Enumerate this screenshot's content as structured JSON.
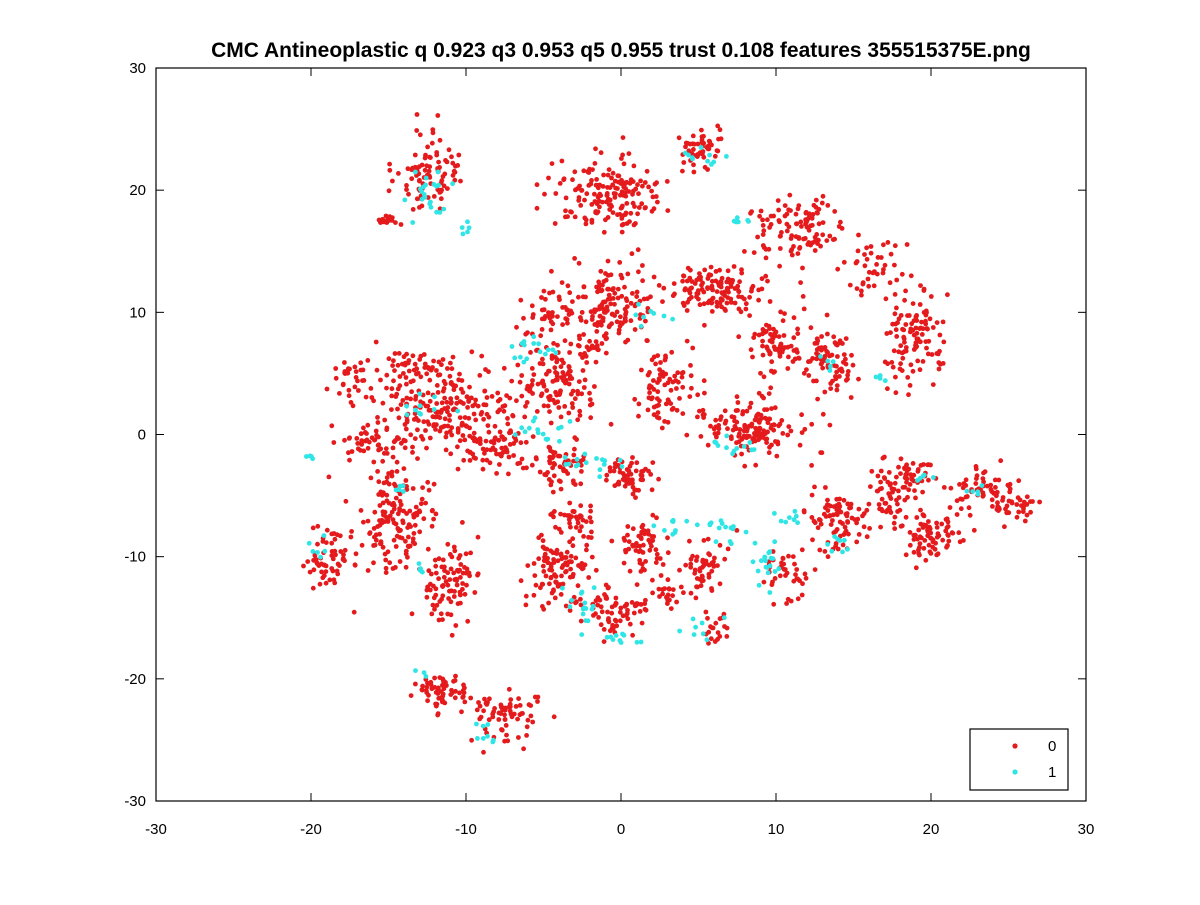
{
  "chart_data": {
    "type": "scatter",
    "title": "CMC Antineoplastic q 0.923 q3 0.953 q5 0.955 trust 0.108 features 355515375E.png",
    "xlabel": "",
    "ylabel": "",
    "xlim": [
      -30,
      30
    ],
    "ylim": [
      -30,
      30
    ],
    "xticks": [
      -30,
      -20,
      -10,
      0,
      10,
      20,
      30
    ],
    "yticks": [
      -30,
      -20,
      -10,
      0,
      10,
      20,
      30
    ],
    "tick_labels_x": [
      "-30",
      "-20",
      "-10",
      "0",
      "10",
      "20",
      "30"
    ],
    "tick_labels_y": [
      "-30",
      "-20",
      "-10",
      "0",
      "10",
      "20",
      "30"
    ],
    "grid": false,
    "legend": {
      "placement": "bottom-right",
      "entries": [
        {
          "label": "0",
          "color": "#e41a1c"
        },
        {
          "label": "1",
          "color": "#2fe5e5"
        }
      ]
    },
    "series": [
      {
        "name": "0",
        "color": "#e41a1c",
        "clusters": [
          [
            -12.5,
            21.5,
            1.6,
            2.5,
            90
          ],
          [
            -15.0,
            17.5,
            0.6,
            0.5,
            14
          ],
          [
            -1.0,
            19.5,
            2.5,
            2.3,
            170
          ],
          [
            5.0,
            23.5,
            1.3,
            1.2,
            50
          ],
          [
            11.5,
            17.0,
            2.5,
            2.2,
            110
          ],
          [
            19.0,
            8.0,
            1.6,
            3.5,
            110
          ],
          [
            16.5,
            14.0,
            1.5,
            2.0,
            40
          ],
          [
            -11.5,
            2.0,
            4.0,
            3.0,
            230
          ],
          [
            -16.5,
            -0.5,
            1.5,
            1.2,
            40
          ],
          [
            -14.5,
            -7.0,
            2.0,
            3.5,
            150
          ],
          [
            -11.0,
            -12.0,
            1.5,
            2.5,
            90
          ],
          [
            -19.0,
            -10.5,
            1.2,
            2.0,
            60
          ],
          [
            -11.5,
            -21.0,
            1.5,
            1.2,
            60
          ],
          [
            -7.5,
            -23.0,
            1.8,
            1.8,
            70
          ],
          [
            -1.0,
            10.5,
            2.5,
            2.5,
            160
          ],
          [
            6.0,
            12.0,
            2.5,
            1.5,
            130
          ],
          [
            10.0,
            7.5,
            1.5,
            2.0,
            80
          ],
          [
            13.5,
            6.0,
            1.2,
            2.5,
            80
          ],
          [
            8.5,
            0.5,
            2.5,
            1.8,
            140
          ],
          [
            3.0,
            4.0,
            1.5,
            2.5,
            80
          ],
          [
            -4.0,
            4.5,
            2.0,
            3.0,
            130
          ],
          [
            -4.0,
            -2.5,
            1.5,
            1.5,
            60
          ],
          [
            -8.0,
            -1.0,
            1.5,
            1.5,
            60
          ],
          [
            0.5,
            -3.5,
            1.2,
            1.2,
            60
          ],
          [
            -4.0,
            -11.0,
            1.5,
            2.0,
            100
          ],
          [
            1.5,
            -9.0,
            1.2,
            1.8,
            60
          ],
          [
            5.5,
            -11.0,
            1.0,
            1.8,
            50
          ],
          [
            -0.5,
            -14.5,
            2.0,
            1.5,
            70
          ],
          [
            3.0,
            -13.0,
            1.0,
            1.0,
            25
          ],
          [
            6.0,
            -16.0,
            0.8,
            1.2,
            20
          ],
          [
            -3.0,
            -7.0,
            1.2,
            1.2,
            40
          ],
          [
            10.5,
            -11.5,
            1.2,
            1.5,
            40
          ],
          [
            14.0,
            -7.0,
            1.5,
            2.0,
            90
          ],
          [
            17.5,
            -5.0,
            1.2,
            2.0,
            60
          ],
          [
            20.0,
            -8.0,
            1.8,
            1.5,
            80
          ],
          [
            23.5,
            -4.5,
            1.5,
            1.2,
            60
          ],
          [
            25.5,
            -6.0,
            1.0,
            1.0,
            30
          ],
          [
            19.0,
            -3.0,
            1.0,
            1.0,
            30
          ],
          [
            -13.0,
            5.5,
            1.8,
            1.0,
            50
          ],
          [
            -17.5,
            5.0,
            1.0,
            1.0,
            25
          ],
          [
            -5.0,
            10.0,
            1.2,
            1.2,
            30
          ]
        ]
      },
      {
        "name": "1",
        "color": "#2fe5e5",
        "clusters": [
          [
            -12.5,
            19.5,
            1.2,
            2.0,
            22
          ],
          [
            -10.0,
            16.5,
            0.4,
            0.6,
            5
          ],
          [
            5.5,
            22.5,
            1.0,
            0.8,
            10
          ],
          [
            7.5,
            17.5,
            0.8,
            0.6,
            6
          ],
          [
            -5.5,
            6.5,
            1.5,
            1.0,
            16
          ],
          [
            1.5,
            9.5,
            1.0,
            0.8,
            8
          ],
          [
            -5.0,
            0.5,
            1.5,
            1.5,
            16
          ],
          [
            -3.0,
            -2.0,
            0.8,
            0.8,
            8
          ],
          [
            -1.0,
            -2.5,
            0.8,
            0.8,
            8
          ],
          [
            7.5,
            -1.0,
            1.5,
            1.0,
            12
          ],
          [
            6.5,
            -7.5,
            1.5,
            1.0,
            16
          ],
          [
            9.5,
            -10.5,
            0.8,
            2.0,
            20
          ],
          [
            10.5,
            -7.0,
            1.0,
            0.8,
            8
          ],
          [
            3.5,
            -7.5,
            1.0,
            0.8,
            8
          ],
          [
            -2.5,
            -14.0,
            1.2,
            1.2,
            16
          ],
          [
            0.0,
            -16.5,
            1.0,
            0.8,
            10
          ],
          [
            5.0,
            -16.0,
            0.8,
            0.8,
            8
          ],
          [
            -8.5,
            -24.5,
            0.6,
            0.8,
            8
          ],
          [
            -13.0,
            -19.5,
            0.3,
            0.3,
            3
          ],
          [
            -19.5,
            -9.5,
            0.6,
            0.6,
            6
          ],
          [
            -20.0,
            -1.5,
            0.4,
            0.5,
            4
          ],
          [
            -14.0,
            -4.5,
            0.6,
            0.5,
            5
          ],
          [
            -13.0,
            2.0,
            1.2,
            1.2,
            10
          ],
          [
            17.0,
            4.5,
            0.4,
            0.4,
            4
          ],
          [
            14.0,
            -9.0,
            1.0,
            1.0,
            8
          ],
          [
            19.5,
            -3.5,
            0.6,
            0.6,
            6
          ],
          [
            13.0,
            6.0,
            0.6,
            0.8,
            5
          ],
          [
            23.0,
            -4.5,
            0.6,
            0.6,
            5
          ],
          [
            -13.0,
            -11.0,
            0.6,
            0.6,
            5
          ]
        ]
      }
    ]
  }
}
